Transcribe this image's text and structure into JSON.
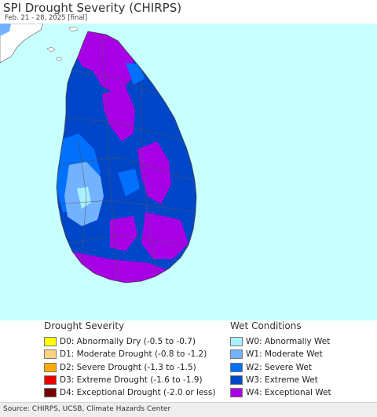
{
  "header": {
    "title": "SPI Drought Severity (CHIRPS)",
    "subtitle": "Feb. 21 - 28, 2025 [final]"
  },
  "map": {
    "ocean_color": "#c8ffff",
    "land_color": "#ffffff",
    "border_color": "#555555"
  },
  "legend": {
    "drought": {
      "title": "Drought Severity",
      "items": [
        {
          "label": "D0: Abnormally Dry (-0.5 to -0.7)",
          "color": "#ffff00"
        },
        {
          "label": "D1: Moderate Drought (-0.8 to -1.2)",
          "color": "#fcd37f"
        },
        {
          "label": "D2: Severe Drought (-1.3 to -1.5)",
          "color": "#ffaa00"
        },
        {
          "label": "D3: Extreme Drought (-1.6 to -1.9)",
          "color": "#e60000"
        },
        {
          "label": "D4: Exceptional Drought (-2.0 or less)",
          "color": "#730000"
        }
      ]
    },
    "wet": {
      "title": "Wet Conditions",
      "items": [
        {
          "label": "W0: Abnormally Wet",
          "color": "#aaf0ff"
        },
        {
          "label": "W1: Moderate Wet",
          "color": "#73b2ff"
        },
        {
          "label": "W2: Severe Wet",
          "color": "#0070ff"
        },
        {
          "label": "W3: Extreme Wet",
          "color": "#0046c8"
        },
        {
          "label": "W4: Exceptional Wet",
          "color": "#a800e6"
        }
      ]
    }
  },
  "footer": {
    "source": "Source: CHIRPS, UCSB, Climate Hazards Center"
  }
}
